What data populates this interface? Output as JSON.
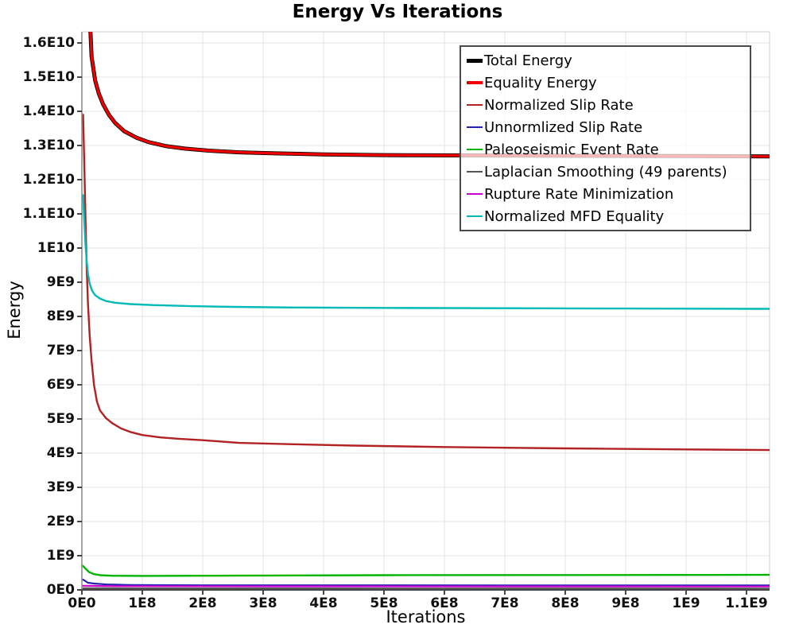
{
  "page_title": "Energy Vs Iterations",
  "chart_data": {
    "type": "line",
    "title": "Energy Vs Iterations",
    "xlabel": "Iterations",
    "ylabel": "Energy",
    "grid": true,
    "legend_position": "top-right-inside",
    "x_range": [
      0,
      1138200000
    ],
    "y_range": [
      0,
      16326000000
    ],
    "x_ticks": {
      "values": [
        0,
        100000000.0,
        200000000.0,
        300000000.0,
        400000000.0,
        500000000.0,
        600000000.0,
        700000000.0,
        800000000.0,
        900000000.0,
        1000000000.0,
        1100000000.0
      ],
      "labels": [
        "0E0",
        "1E8",
        "2E8",
        "3E8",
        "4E8",
        "5E8",
        "6E8",
        "7E8",
        "8E8",
        "9E8",
        "1E9",
        "1.1E9"
      ]
    },
    "y_ticks": {
      "values": [
        0,
        1000000000.0,
        2000000000.0,
        3000000000.0,
        4000000000.0,
        5000000000.0,
        6000000000.0,
        7000000000.0,
        8000000000.0,
        9000000000.0,
        10000000000.0,
        11000000000.0,
        12000000000.0,
        13000000000.0,
        14000000000.0,
        15000000000.0,
        16000000000.0
      ],
      "labels": [
        "0E0",
        "1E9",
        "2E9",
        "3E9",
        "4E9",
        "5E9",
        "6E9",
        "7E9",
        "8E9",
        "9E9",
        "1E10",
        "1.1E10",
        "1.2E10",
        "1.3E10",
        "1.4E10",
        "1.5E10",
        "1.6E10"
      ]
    },
    "colors": {
      "grid": "#e4e4e4",
      "plot_border": "#cfcfcf",
      "y_axis": "#888888",
      "x_axis": "#444444",
      "tick_mark": "#444444",
      "legend_border": "#4a4a4a"
    },
    "series": [
      {
        "name": "Total Energy",
        "color": "#000000",
        "line_width": 5,
        "swatch_width": 5,
        "points": [
          [
            6000000.0,
            26000000000.0
          ],
          [
            12000000.0,
            17200000000.0
          ],
          [
            16000000.0,
            15600000000.0
          ],
          [
            22000000.0,
            14900000000.0
          ],
          [
            28000000.0,
            14520000000.0
          ],
          [
            35000000.0,
            14210000000.0
          ],
          [
            45000000.0,
            13890000000.0
          ],
          [
            55000000.0,
            13660000000.0
          ],
          [
            70000000.0,
            13420000000.0
          ],
          [
            90000000.0,
            13230000000.0
          ],
          [
            110000000.0,
            13100000000.0
          ],
          [
            140000000.0,
            12980000000.0
          ],
          [
            170000000.0,
            12910000000.0
          ],
          [
            210000000.0,
            12850000000.0
          ],
          [
            260000000.0,
            12800000000.0
          ],
          [
            320000000.0,
            12770000000.0
          ],
          [
            400000000.0,
            12740000000.0
          ],
          [
            500000000.0,
            12720000000.0
          ],
          [
            650000000.0,
            12710000000.0
          ],
          [
            800000000.0,
            12700000000.0
          ],
          [
            1000000000.0,
            12690000000.0
          ],
          [
            1138000000.0,
            12680000000.0
          ]
        ]
      },
      {
        "name": "Equality Energy",
        "color": "#ee0000",
        "line_width": 3.4,
        "swatch_width": 4,
        "points": [
          [
            6000000.0,
            26000000000.0
          ],
          [
            12000000.0,
            17200000000.0
          ],
          [
            16000000.0,
            15600000000.0
          ],
          [
            22000000.0,
            14900000000.0
          ],
          [
            28000000.0,
            14520000000.0
          ],
          [
            35000000.0,
            14210000000.0
          ],
          [
            45000000.0,
            13890000000.0
          ],
          [
            55000000.0,
            13660000000.0
          ],
          [
            70000000.0,
            13420000000.0
          ],
          [
            90000000.0,
            13230000000.0
          ],
          [
            110000000.0,
            13100000000.0
          ],
          [
            140000000.0,
            12980000000.0
          ],
          [
            170000000.0,
            12910000000.0
          ],
          [
            210000000.0,
            12850000000.0
          ],
          [
            260000000.0,
            12800000000.0
          ],
          [
            320000000.0,
            12770000000.0
          ],
          [
            400000000.0,
            12740000000.0
          ],
          [
            500000000.0,
            12720000000.0
          ],
          [
            650000000.0,
            12710000000.0
          ],
          [
            800000000.0,
            12700000000.0
          ],
          [
            1000000000.0,
            12690000000.0
          ],
          [
            1138000000.0,
            12680000000.0
          ]
        ]
      },
      {
        "name": "Normalized Slip Rate",
        "color": "#b22222",
        "line_width": 2.4,
        "swatch_width": 2.5,
        "points": [
          [
            2000000.0,
            13900000000.0
          ],
          [
            4000000.0,
            12500000000.0
          ],
          [
            6000000.0,
            10800000000.0
          ],
          [
            8000000.0,
            9400000000.0
          ],
          [
            10000000.0,
            8400000000.0
          ],
          [
            13000000.0,
            7400000000.0
          ],
          [
            16000000.0,
            6700000000.0
          ],
          [
            20000000.0,
            6000000000.0
          ],
          [
            25000000.0,
            5500000000.0
          ],
          [
            30000000.0,
            5250000000.0
          ],
          [
            40000000.0,
            5020000000.0
          ],
          [
            50000000.0,
            4880000000.0
          ],
          [
            65000000.0,
            4720000000.0
          ],
          [
            80000000.0,
            4620000000.0
          ],
          [
            100000000.0,
            4530000000.0
          ],
          [
            130000000.0,
            4460000000.0
          ],
          [
            160000000.0,
            4420000000.0
          ],
          [
            200000000.0,
            4380000000.0
          ],
          [
            260000000.0,
            4300000000.0
          ],
          [
            350000000.0,
            4260000000.0
          ],
          [
            450000000.0,
            4220000000.0
          ],
          [
            600000000.0,
            4180000000.0
          ],
          [
            800000000.0,
            4140000000.0
          ],
          [
            1000000000.0,
            4110000000.0
          ],
          [
            1138000000.0,
            4090000000.0
          ]
        ]
      },
      {
        "name": "Unnormlized Slip Rate",
        "color": "#2424b0",
        "line_width": 2.2,
        "swatch_width": 2.5,
        "points": [
          [
            2000000.0,
            300000000.0
          ],
          [
            10000000.0,
            210000000.0
          ],
          [
            20000000.0,
            185000000.0
          ],
          [
            40000000.0,
            160000000.0
          ],
          [
            80000000.0,
            145000000.0
          ],
          [
            200000000.0,
            135000000.0
          ],
          [
            1138000000.0,
            130000000.0
          ]
        ]
      },
      {
        "name": "Paleoseismic Event Rate",
        "color": "#00b400",
        "line_width": 2.4,
        "swatch_width": 2.5,
        "points": [
          [
            2000000.0,
            700000000.0
          ],
          [
            6000000.0,
            620000000.0
          ],
          [
            12000000.0,
            520000000.0
          ],
          [
            20000000.0,
            460000000.0
          ],
          [
            30000000.0,
            430000000.0
          ],
          [
            50000000.0,
            415000000.0
          ],
          [
            100000000.0,
            410000000.0
          ],
          [
            200000000.0,
            415000000.0
          ],
          [
            500000000.0,
            430000000.0
          ],
          [
            1138000000.0,
            440000000.0
          ]
        ]
      },
      {
        "name": "Laplacian Smoothing (49 parents)",
        "color": "#555555",
        "line_width": 2.2,
        "swatch_width": 2.5,
        "points": [
          [
            2000000.0,
            50000000.0
          ],
          [
            100000000.0,
            45000000.0
          ],
          [
            1138000000.0,
            40000000.0
          ]
        ]
      },
      {
        "name": "Rupture Rate Minimization",
        "color": "#cc00cc",
        "line_width": 2.2,
        "swatch_width": 2.5,
        "points": [
          [
            2000000.0,
            120000000.0
          ],
          [
            50000000.0,
            110000000.0
          ],
          [
            300000000.0,
            105000000.0
          ],
          [
            1138000000.0,
            100000000.0
          ]
        ]
      },
      {
        "name": "Normalized MFD Equality",
        "color": "#00b9b9",
        "line_width": 2.4,
        "swatch_width": 2.5,
        "points": [
          [
            2000000.0,
            11550000000.0
          ],
          [
            4000000.0,
            10800000000.0
          ],
          [
            6000000.0,
            10100000000.0
          ],
          [
            8000000.0,
            9600000000.0
          ],
          [
            10000000.0,
            9250000000.0
          ],
          [
            13000000.0,
            8950000000.0
          ],
          [
            17000000.0,
            8750000000.0
          ],
          [
            22000000.0,
            8620000000.0
          ],
          [
            30000000.0,
            8520000000.0
          ],
          [
            40000000.0,
            8450000000.0
          ],
          [
            55000000.0,
            8400000000.0
          ],
          [
            80000000.0,
            8360000000.0
          ],
          [
            120000000.0,
            8330000000.0
          ],
          [
            180000000.0,
            8300000000.0
          ],
          [
            250000000.0,
            8280000000.0
          ],
          [
            350000000.0,
            8260000000.0
          ],
          [
            500000000.0,
            8250000000.0
          ],
          [
            700000000.0,
            8240000000.0
          ],
          [
            900000000.0,
            8230000000.0
          ],
          [
            1138000000.0,
            8220000000.0
          ]
        ]
      }
    ]
  }
}
